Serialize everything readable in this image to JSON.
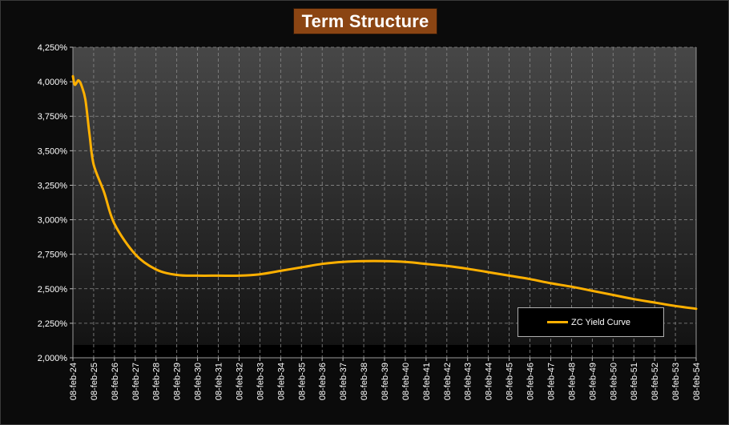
{
  "chart_data": {
    "type": "line",
    "title": "Term Structure",
    "xlabel": "",
    "ylabel": "",
    "legend_position": "bottom-right",
    "grid": true,
    "ylim": [
      2.0,
      4.25
    ],
    "y_ticks": [
      "2,000%",
      "2,250%",
      "2,500%",
      "2,750%",
      "3,000%",
      "3,250%",
      "3,500%",
      "3,750%",
      "4,000%",
      "4,250%"
    ],
    "x_ticks": [
      "08-feb-24",
      "08-feb-25",
      "08-feb-26",
      "08-feb-27",
      "08-feb-28",
      "08-feb-29",
      "08-feb-30",
      "08-feb-31",
      "08-feb-32",
      "08-feb-33",
      "08-feb-34",
      "08-feb-35",
      "08-feb-36",
      "08-feb-37",
      "08-feb-38",
      "08-feb-39",
      "08-feb-40",
      "08-feb-41",
      "08-feb-42",
      "08-feb-43",
      "08-feb-44",
      "08-feb-45",
      "08-feb-46",
      "08-feb-47",
      "08-feb-48",
      "08-feb-49",
      "08-feb-50",
      "08-feb-51",
      "08-feb-52",
      "08-feb-53",
      "08-feb-54"
    ],
    "series": [
      {
        "name": "ZC Yield Curve",
        "color": "#ffb000",
        "x": [
          2024.0,
          2024.08,
          2024.17,
          2024.25,
          2024.33,
          2024.42,
          2024.6,
          2024.8,
          2025.0,
          2025.5,
          2026.0,
          2027.0,
          2028.0,
          2029.0,
          2030.0,
          2031.0,
          2032.0,
          2033.0,
          2034.0,
          2035.0,
          2036.0,
          2037.0,
          2038.0,
          2039.0,
          2040.0,
          2041.0,
          2042.0,
          2043.0,
          2044.0,
          2045.0,
          2046.0,
          2047.0,
          2048.0,
          2049.0,
          2050.0,
          2051.0,
          2052.0,
          2053.0,
          2054.0
        ],
        "y": [
          4.04,
          3.98,
          3.99,
          4.01,
          4.0,
          3.97,
          3.87,
          3.62,
          3.4,
          3.2,
          2.97,
          2.75,
          2.64,
          2.6,
          2.595,
          2.595,
          2.595,
          2.605,
          2.63,
          2.655,
          2.68,
          2.695,
          2.7,
          2.7,
          2.695,
          2.68,
          2.665,
          2.645,
          2.62,
          2.595,
          2.57,
          2.54,
          2.515,
          2.485,
          2.455,
          2.425,
          2.4,
          2.375,
          2.355
        ]
      }
    ]
  }
}
